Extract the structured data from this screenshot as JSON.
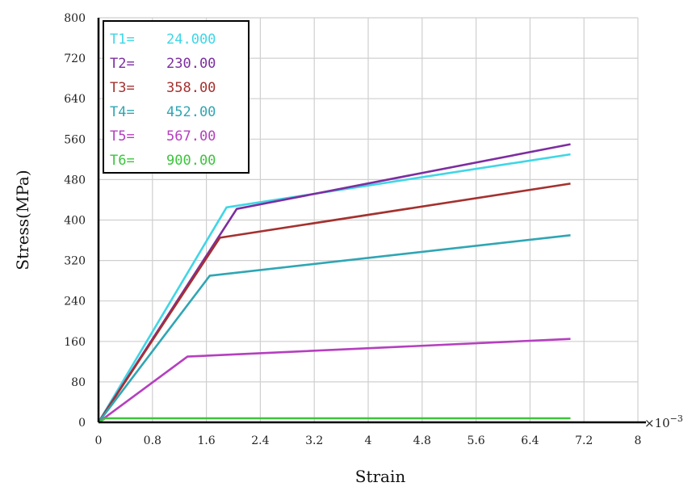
{
  "chart_data": {
    "type": "line",
    "title": "",
    "xlabel": "Strain",
    "ylabel": "Stress(MPa)",
    "x_multiplier_label": "×10",
    "x_multiplier_exponent": "−3",
    "xlim": [
      0,
      8
    ],
    "ylim": [
      0,
      800
    ],
    "x_ticks": [
      "0",
      "0.8",
      "1.6",
      "2.4",
      "3.2",
      "4",
      "4.8",
      "5.6",
      "6.4",
      "7.2",
      "8"
    ],
    "y_ticks": [
      "0",
      "80",
      "160",
      "240",
      "320",
      "400",
      "480",
      "560",
      "640",
      "720",
      "800"
    ],
    "grid": true,
    "legend_position": "top-left",
    "series": [
      {
        "name": "T1=",
        "value_label": "24.000",
        "color": "#3fd6e6",
        "x": [
          0,
          1.9,
          7.0
        ],
        "y": [
          0,
          425,
          530
        ]
      },
      {
        "name": "T2=",
        "value_label": "230.00",
        "color": "#7d2da0",
        "x": [
          0,
          2.05,
          7.0
        ],
        "y": [
          0,
          422,
          550
        ]
      },
      {
        "name": "T3=",
        "value_label": "358.00",
        "color": "#a4312f",
        "x": [
          0,
          1.8,
          7.0
        ],
        "y": [
          0,
          365,
          472
        ]
      },
      {
        "name": "T4=",
        "value_label": "452.00",
        "color": "#2fa6b4",
        "x": [
          0,
          1.65,
          7.0
        ],
        "y": [
          0,
          290,
          370
        ]
      },
      {
        "name": "T5=",
        "value_label": "567.00",
        "color": "#b53fbf",
        "x": [
          0,
          1.32,
          7.0
        ],
        "y": [
          0,
          130,
          165
        ]
      },
      {
        "name": "T6=",
        "value_label": "900.00",
        "color": "#3cc43c",
        "x": [
          0,
          0.1,
          7.0
        ],
        "y": [
          0,
          8,
          8
        ]
      }
    ]
  }
}
